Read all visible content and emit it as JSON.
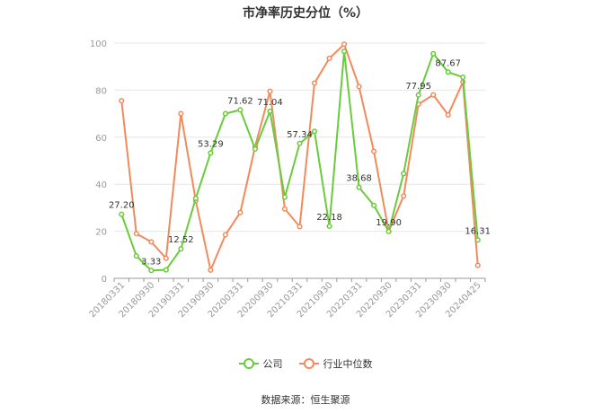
{
  "chart_data": {
    "type": "line",
    "title": "市净率历史分位（%）",
    "x": [
      "20180331",
      "20180630",
      "20180930",
      "20181231",
      "20190331",
      "20190630",
      "20190930",
      "20191231",
      "20200331",
      "20200630",
      "20200930",
      "20201231",
      "20210331",
      "20210630",
      "20210930",
      "20211231",
      "20220331",
      "20220630",
      "20220930",
      "20221231",
      "20230331",
      "20230630",
      "20230930",
      "20231231",
      "20240425"
    ],
    "x_tick_labels": [
      "20180331",
      "20180930",
      "20190331",
      "20190930",
      "20200331",
      "20200930",
      "20210331",
      "20210930",
      "20220331",
      "20220930",
      "20230331",
      "20230930",
      "20240425"
    ],
    "ylim": [
      0,
      100
    ],
    "y_ticks": [
      0,
      20,
      40,
      60,
      80,
      100
    ],
    "grid": true,
    "legend_position": "bottom",
    "series": [
      {
        "name": "公司",
        "color": "#6acb3c",
        "values": [
          27.2,
          9.5,
          3.33,
          3.6,
          12.52,
          34,
          53.29,
          70,
          71.62,
          55,
          71.04,
          34.5,
          57.34,
          62.5,
          22.18,
          96.5,
          38.68,
          31,
          19.9,
          44.5,
          77.95,
          95.5,
          87.67,
          85.5,
          16.31
        ],
        "labels": {
          "0": "27.20",
          "2": "3.33",
          "4": "12.52",
          "6": "53.29",
          "8": "71.62",
          "10": "71.04",
          "12": "57.34",
          "14": "22.18",
          "16": "38.68",
          "18": "19.90",
          "20": "77.95",
          "22": "87.67",
          "24": "16.31"
        }
      },
      {
        "name": "行业中位数",
        "color": "#f28a5c",
        "values": [
          75.5,
          19,
          15.5,
          8.5,
          70,
          33,
          3.5,
          18.5,
          28,
          56,
          79.5,
          29.5,
          22,
          83,
          93.5,
          99.5,
          81.5,
          54,
          20,
          35,
          74,
          78,
          69.5,
          83.5,
          5.5
        ]
      }
    ]
  },
  "source_text": "数据来源：恒生聚源"
}
